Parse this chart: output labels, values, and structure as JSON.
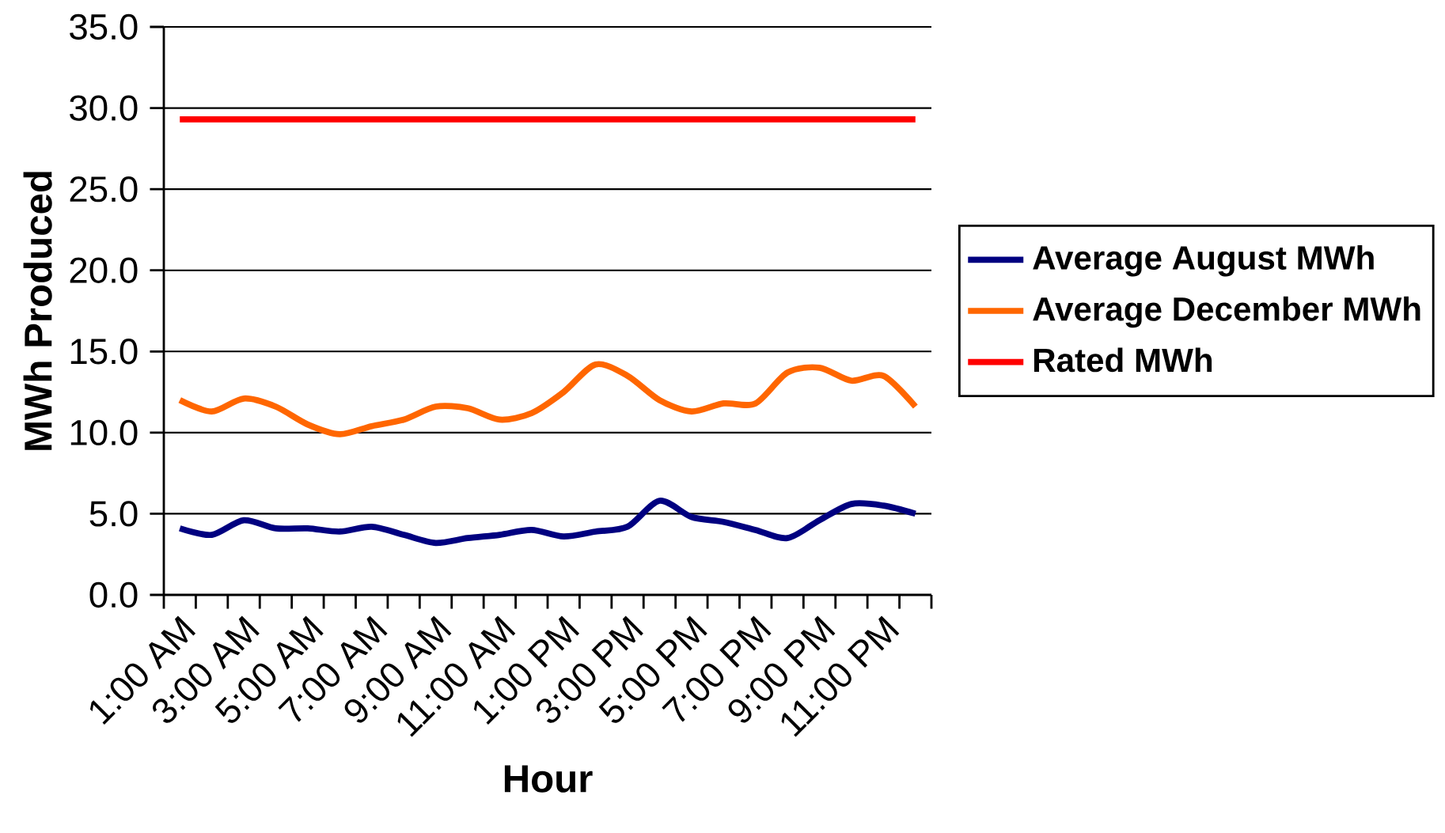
{
  "chart_data": {
    "type": "line",
    "xlabel": "Hour",
    "ylabel": "MWh Produced",
    "categories": [
      "1:00 AM",
      null,
      "3:00 AM",
      null,
      "5:00 AM",
      null,
      "7:00 AM",
      null,
      "9:00 AM",
      null,
      "11:00 AM",
      null,
      "1:00 PM",
      null,
      "3:00 PM",
      null,
      "5:00 PM",
      null,
      "7:00 PM",
      null,
      "9:00 PM",
      null,
      "11:00 PM",
      null
    ],
    "series": [
      {
        "name": "Average August MWh",
        "color": "#000080",
        "values": [
          4.1,
          3.7,
          4.6,
          4.1,
          4.1,
          3.9,
          4.2,
          3.7,
          3.2,
          3.5,
          3.7,
          4.0,
          3.6,
          3.9,
          4.2,
          5.8,
          4.8,
          4.5,
          4.0,
          3.5,
          4.6,
          5.6,
          5.5,
          5.0
        ]
      },
      {
        "name": "Average December MWh",
        "color": "#ff6600",
        "values": [
          12.0,
          11.3,
          12.1,
          11.6,
          10.5,
          9.9,
          10.4,
          10.8,
          11.6,
          11.5,
          10.8,
          11.2,
          12.5,
          14.2,
          13.5,
          12.0,
          11.3,
          11.8,
          11.8,
          13.7,
          14.0,
          13.2,
          13.5,
          11.6
        ]
      },
      {
        "name": "Rated MWh",
        "color": "#ff0000",
        "values": [
          29.3,
          29.3,
          29.3,
          29.3,
          29.3,
          29.3,
          29.3,
          29.3,
          29.3,
          29.3,
          29.3,
          29.3,
          29.3,
          29.3,
          29.3,
          29.3,
          29.3,
          29.3,
          29.3,
          29.3,
          29.3,
          29.3,
          29.3,
          29.3
        ]
      }
    ],
    "ylim": [
      0,
      35
    ],
    "yticks": [
      {
        "value": 0,
        "label": "0.0"
      },
      {
        "value": 5,
        "label": "5.0"
      },
      {
        "value": 10,
        "label": "10.0"
      },
      {
        "value": 15,
        "label": "15.0"
      },
      {
        "value": 20,
        "label": "20.0"
      },
      {
        "value": 25,
        "label": "25.0"
      },
      {
        "value": 30,
        "label": "30.0"
      },
      {
        "value": 35,
        "label": "35.0"
      }
    ],
    "grid": "y",
    "legend": "right"
  }
}
